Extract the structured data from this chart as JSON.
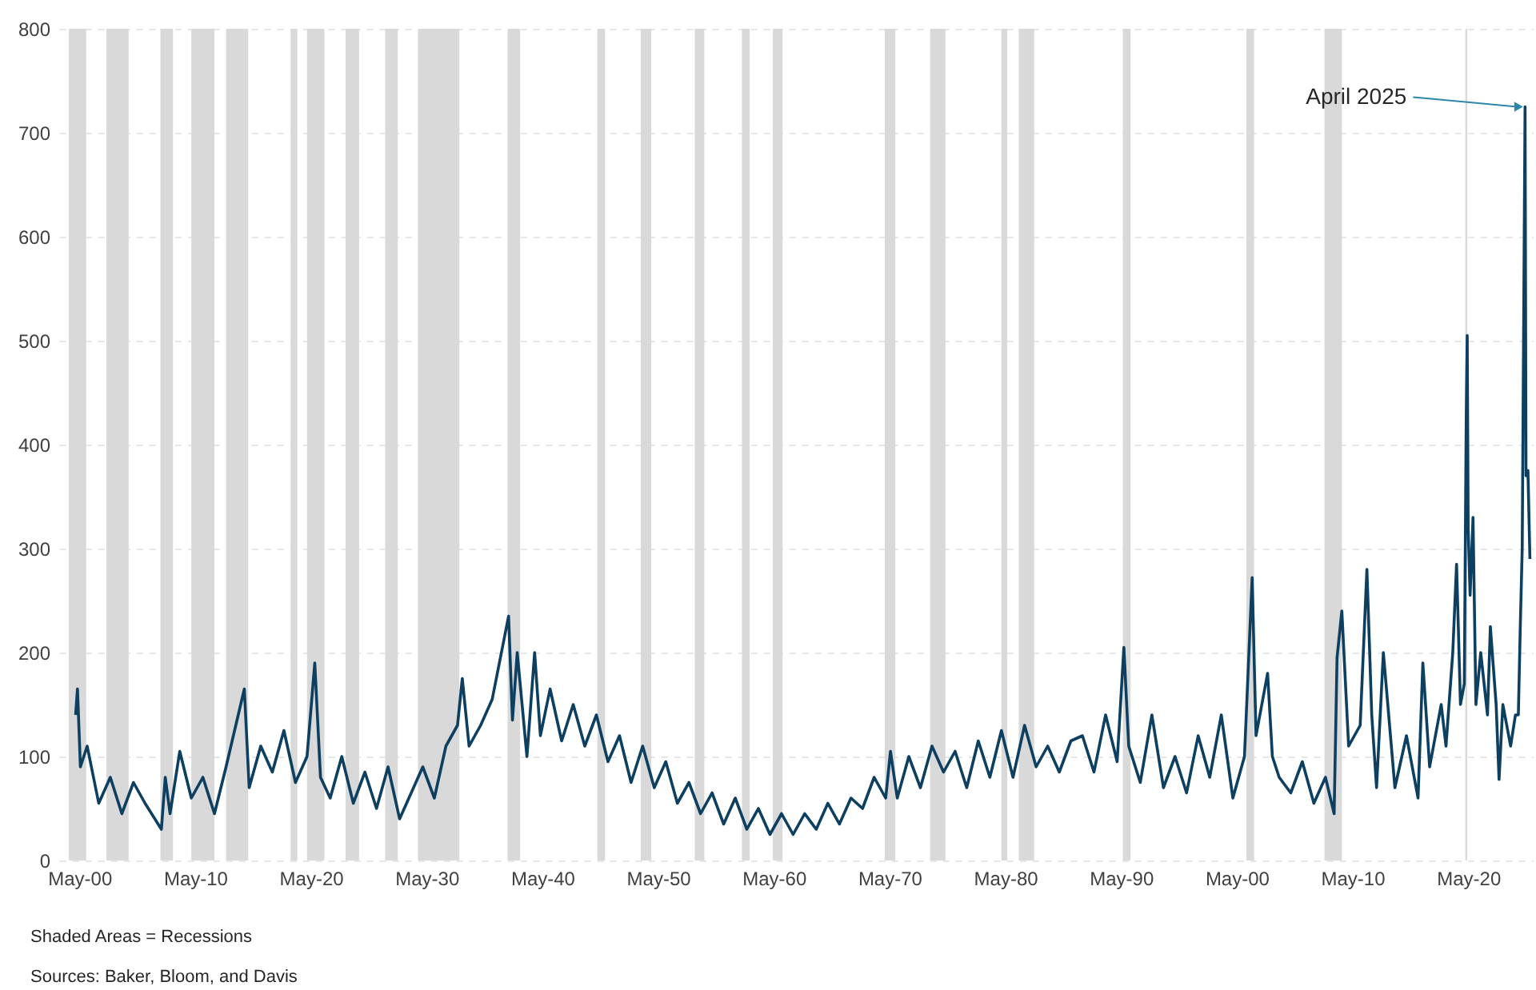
{
  "chart_data": {
    "type": "line",
    "x": [
      "1900-01",
      "1900-03",
      "1900-06",
      "1901-01",
      "1902-01",
      "1903-01",
      "1904-01",
      "1905-01",
      "1906-01",
      "1907-06",
      "1907-10",
      "1908-03",
      "1909-01",
      "1910-01",
      "1911-01",
      "1912-01",
      "1913-01",
      "1914-08",
      "1915-01",
      "1916-01",
      "1917-01",
      "1918-01",
      "1919-01",
      "1920-01",
      "1920-09",
      "1921-03",
      "1922-01",
      "1923-01",
      "1924-01",
      "1925-01",
      "1926-01",
      "1927-01",
      "1928-01",
      "1929-01",
      "1930-01",
      "1931-01",
      "1932-01",
      "1933-01",
      "1933-06",
      "1934-01",
      "1935-01",
      "1936-01",
      "1937-06",
      "1937-10",
      "1938-03",
      "1939-01",
      "1939-09",
      "1940-03",
      "1941-01",
      "1942-01",
      "1943-01",
      "1944-01",
      "1945-01",
      "1946-01",
      "1947-01",
      "1948-01",
      "1949-01",
      "1950-01",
      "1951-01",
      "1952-01",
      "1953-01",
      "1954-01",
      "1955-01",
      "1956-01",
      "1957-01",
      "1958-01",
      "1959-01",
      "1960-01",
      "1961-01",
      "1962-01",
      "1963-01",
      "1964-01",
      "1965-01",
      "1966-01",
      "1967-01",
      "1968-01",
      "1969-01",
      "1970-01",
      "1970-06",
      "1971-01",
      "1972-01",
      "1973-01",
      "1974-01",
      "1975-01",
      "1976-01",
      "1977-01",
      "1978-01",
      "1979-01",
      "1980-01",
      "1981-01",
      "1982-01",
      "1983-01",
      "1984-01",
      "1985-01",
      "1986-01",
      "1987-01",
      "1988-01",
      "1989-01",
      "1990-01",
      "1990-08",
      "1991-01",
      "1992-01",
      "1993-01",
      "1994-01",
      "1995-01",
      "1996-01",
      "1997-01",
      "1998-01",
      "1999-01",
      "2000-01",
      "2001-01",
      "2001-09",
      "2002-01",
      "2003-01",
      "2003-06",
      "2004-01",
      "2005-01",
      "2006-01",
      "2007-01",
      "2008-01",
      "2008-10",
      "2009-01",
      "2009-06",
      "2010-01",
      "2011-01",
      "2011-08",
      "2012-01",
      "2012-06",
      "2013-01",
      "2014-01",
      "2015-01",
      "2016-01",
      "2016-06",
      "2017-01",
      "2018-01",
      "2018-06",
      "2019-01",
      "2019-05",
      "2019-09",
      "2020-01",
      "2020-03",
      "2020-04",
      "2020-05",
      "2020-07",
      "2020-10",
      "2021-01",
      "2021-06",
      "2022-01",
      "2022-04",
      "2022-10",
      "2023-01",
      "2023-05",
      "2024-01",
      "2024-06",
      "2024-09",
      "2024-11",
      "2025-01",
      "2025-04",
      "2025-05",
      "2025-07",
      "2025-09"
    ],
    "series": [
      {
        "color": "#0d3f61",
        "values": [
          140,
          165,
          90,
          110,
          55,
          80,
          45,
          75,
          55,
          30,
          80,
          45,
          105,
          60,
          80,
          45,
          90,
          165,
          70,
          110,
          85,
          125,
          75,
          100,
          190,
          80,
          60,
          100,
          55,
          85,
          50,
          90,
          40,
          65,
          90,
          60,
          110,
          130,
          175,
          110,
          130,
          155,
          235,
          135,
          200,
          100,
          200,
          120,
          165,
          115,
          150,
          110,
          140,
          95,
          120,
          75,
          110,
          70,
          95,
          55,
          75,
          45,
          65,
          35,
          60,
          30,
          50,
          25,
          45,
          25,
          45,
          30,
          55,
          35,
          60,
          50,
          80,
          60,
          105,
          60,
          100,
          70,
          110,
          85,
          105,
          70,
          115,
          80,
          125,
          80,
          130,
          90,
          110,
          85,
          115,
          120,
          85,
          140,
          95,
          205,
          110,
          75,
          140,
          70,
          100,
          65,
          120,
          80,
          140,
          60,
          100,
          272,
          120,
          180,
          100,
          80,
          65,
          95,
          55,
          80,
          45,
          195,
          240,
          110,
          130,
          280,
          140,
          70,
          200,
          70,
          120,
          60,
          190,
          90,
          150,
          110,
          200,
          285,
          150,
          170,
          425,
          505,
          320,
          255,
          330,
          150,
          200,
          140,
          225,
          150,
          78,
          150,
          110,
          140,
          140,
          225,
          300,
          725,
          370,
          375,
          290
        ]
      }
    ],
    "xlim": [
      "1898-08",
      "2025-12"
    ],
    "xticks": [
      {
        "value": "1900-05",
        "label": "May-00"
      },
      {
        "value": "1910-05",
        "label": "May-10"
      },
      {
        "value": "1920-05",
        "label": "May-20"
      },
      {
        "value": "1930-05",
        "label": "May-30"
      },
      {
        "value": "1940-05",
        "label": "May-40"
      },
      {
        "value": "1950-05",
        "label": "May-50"
      },
      {
        "value": "1960-05",
        "label": "May-60"
      },
      {
        "value": "1970-05",
        "label": "May-70"
      },
      {
        "value": "1980-05",
        "label": "May-80"
      },
      {
        "value": "1990-05",
        "label": "May-90"
      },
      {
        "value": "2000-05",
        "label": "May-00"
      },
      {
        "value": "2010-05",
        "label": "May-10"
      },
      {
        "value": "2020-05",
        "label": "May-20"
      }
    ],
    "ylim": [
      0,
      800
    ],
    "yticks": [
      0,
      100,
      200,
      300,
      400,
      500,
      600,
      700,
      800
    ],
    "grid": "y",
    "bands": [
      {
        "axis": "x",
        "from": "1899-06",
        "to": "1900-12",
        "color": "#d9d9d9"
      },
      {
        "axis": "x",
        "from": "1902-09",
        "to": "1904-08",
        "color": "#d9d9d9"
      },
      {
        "axis": "x",
        "from": "1907-05",
        "to": "1908-06",
        "color": "#d9d9d9"
      },
      {
        "axis": "x",
        "from": "1910-01",
        "to": "1912-01",
        "color": "#d9d9d9"
      },
      {
        "axis": "x",
        "from": "1913-01",
        "to": "1914-12",
        "color": "#d9d9d9"
      },
      {
        "axis": "x",
        "from": "1918-08",
        "to": "1919-03",
        "color": "#d9d9d9"
      },
      {
        "axis": "x",
        "from": "1920-01",
        "to": "1921-07",
        "color": "#d9d9d9"
      },
      {
        "axis": "x",
        "from": "1923-05",
        "to": "1924-07",
        "color": "#d9d9d9"
      },
      {
        "axis": "x",
        "from": "1926-10",
        "to": "1927-11",
        "color": "#d9d9d9"
      },
      {
        "axis": "x",
        "from": "1929-08",
        "to": "1933-03",
        "color": "#d9d9d9"
      },
      {
        "axis": "x",
        "from": "1937-05",
        "to": "1938-06",
        "color": "#d9d9d9"
      },
      {
        "axis": "x",
        "from": "1945-02",
        "to": "1945-10",
        "color": "#d9d9d9"
      },
      {
        "axis": "x",
        "from": "1948-11",
        "to": "1949-10",
        "color": "#d9d9d9"
      },
      {
        "axis": "x",
        "from": "1953-07",
        "to": "1954-05",
        "color": "#d9d9d9"
      },
      {
        "axis": "x",
        "from": "1957-08",
        "to": "1958-04",
        "color": "#d9d9d9"
      },
      {
        "axis": "x",
        "from": "1960-04",
        "to": "1961-02",
        "color": "#d9d9d9"
      },
      {
        "axis": "x",
        "from": "1969-12",
        "to": "1970-11",
        "color": "#d9d9d9"
      },
      {
        "axis": "x",
        "from": "1973-11",
        "to": "1975-03",
        "color": "#d9d9d9"
      },
      {
        "axis": "x",
        "from": "1980-01",
        "to": "1980-07",
        "color": "#d9d9d9"
      },
      {
        "axis": "x",
        "from": "1981-07",
        "to": "1982-11",
        "color": "#d9d9d9"
      },
      {
        "axis": "x",
        "from": "1990-07",
        "to": "1991-03",
        "color": "#d9d9d9"
      },
      {
        "axis": "x",
        "from": "2001-03",
        "to": "2001-11",
        "color": "#d9d9d9"
      },
      {
        "axis": "x",
        "from": "2007-12",
        "to": "2009-06",
        "color": "#d9d9d9"
      },
      {
        "axis": "x",
        "from": "2020-02",
        "to": "2020-04",
        "color": "#d9d9d9"
      }
    ],
    "annotations": [
      {
        "text": "April 2025",
        "x": "2025-04",
        "y": 725
      },
      "Shaded Areas = Recessions",
      "Sources: Baker, Bloom, and Davis"
    ],
    "marker": "none",
    "line_style": "solid"
  }
}
